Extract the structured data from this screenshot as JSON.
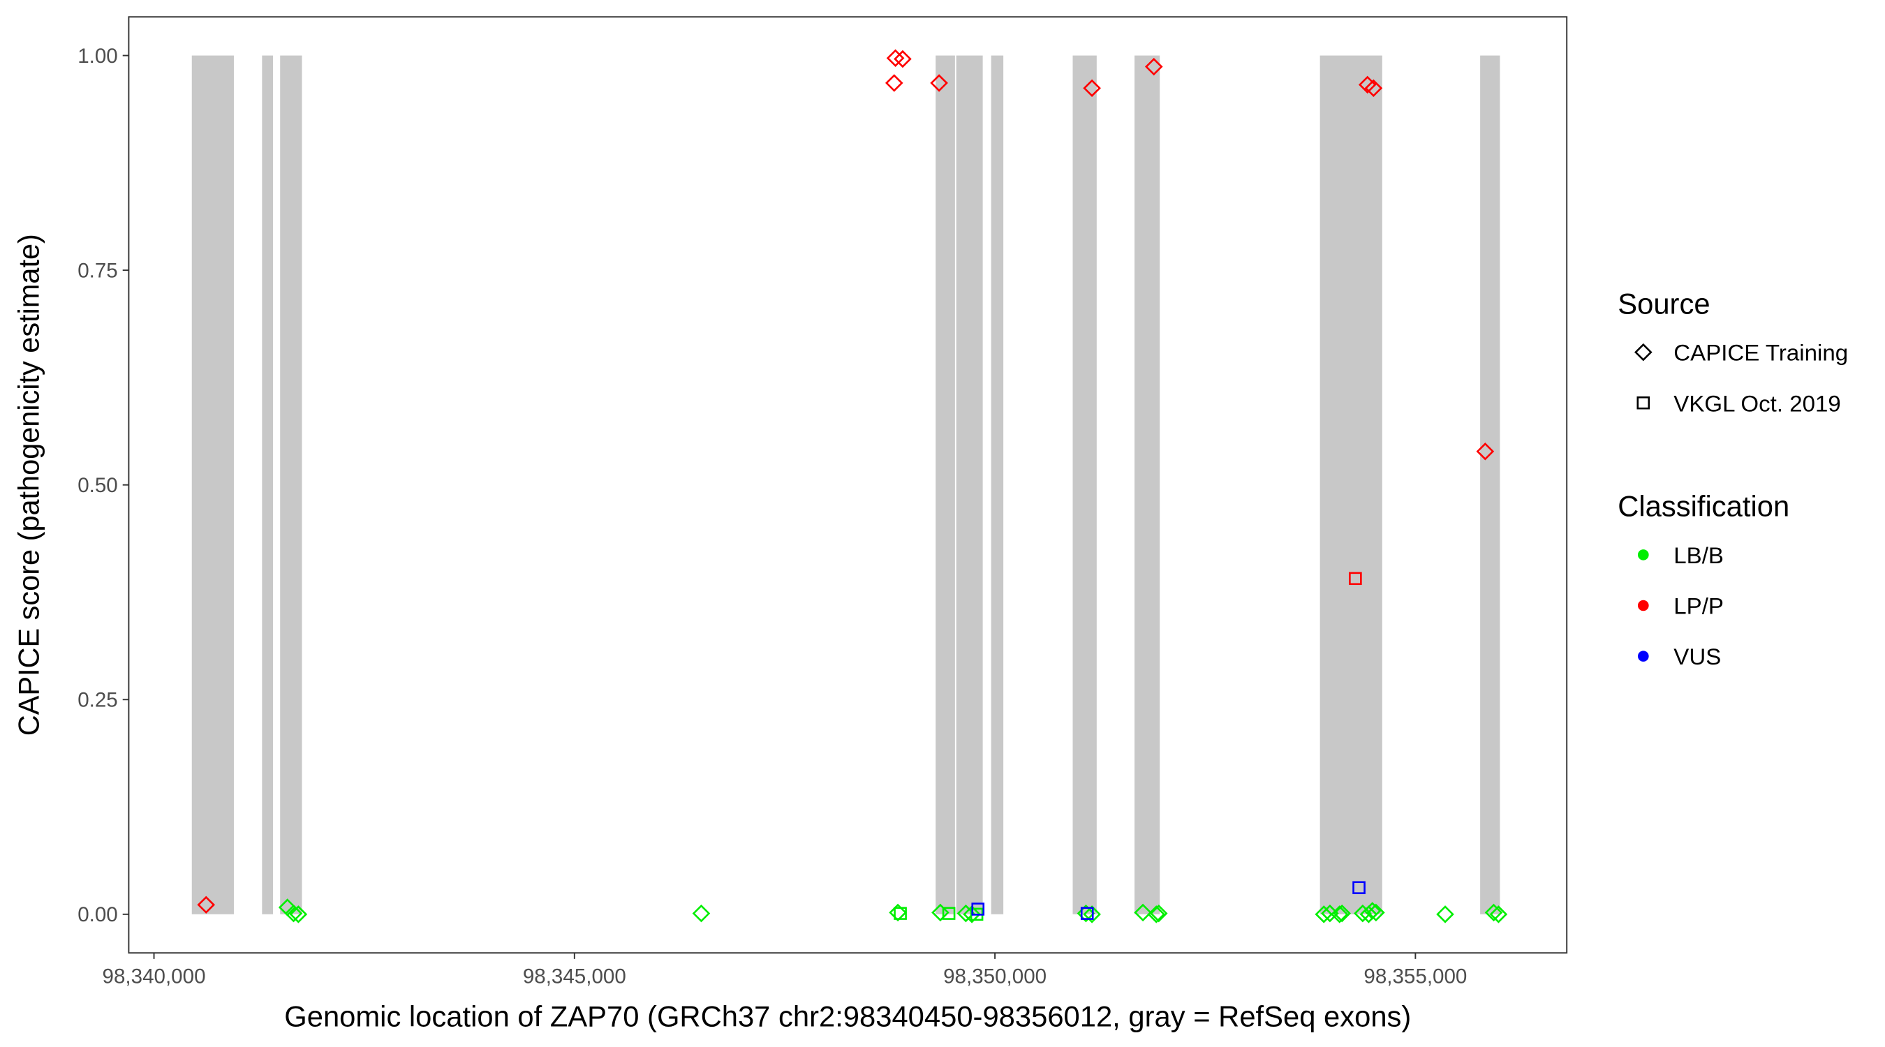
{
  "chart_data": {
    "type": "scatter",
    "title": "",
    "xlabel": "Genomic location of ZAP70 (GRCh37 chr2:98340450-98356012, gray = RefSeq exons)",
    "ylabel": "CAPICE score (pathogenicity estimate)",
    "xlim": [
      98339700,
      98356800
    ],
    "ylim": [
      -0.045,
      1.045
    ],
    "x_ticks": [
      98340000,
      98345000,
      98350000,
      98355000
    ],
    "x_tick_labels": [
      "98,340,000",
      "98,345,000",
      "98,350,000",
      "98,355,000"
    ],
    "y_ticks": [
      0,
      0.25,
      0.5,
      0.75,
      1.0
    ],
    "y_tick_labels": [
      "0.00",
      "0.25",
      "0.50",
      "0.75",
      "1.00"
    ],
    "grid": false,
    "exon_color": "#C8C8C8",
    "exons": [
      [
        98340450,
        98340950
      ],
      [
        98341285,
        98341415
      ],
      [
        98341500,
        98341760
      ],
      [
        98349295,
        98349525
      ],
      [
        98349540,
        98349855
      ],
      [
        98349955,
        98350100
      ],
      [
        98350925,
        98351210
      ],
      [
        98351660,
        98351960
      ],
      [
        98353865,
        98354605
      ],
      [
        98355770,
        98356005
      ]
    ],
    "legend_placement": "right",
    "legends": [
      {
        "title": "Source",
        "entries": [
          {
            "label": "CAPICE Training",
            "shape": "diamond"
          },
          {
            "label": "VKGL Oct. 2019",
            "shape": "square"
          }
        ]
      },
      {
        "title": "Classification",
        "entries": [
          {
            "label": "LB/B",
            "color": "#00EE00"
          },
          {
            "label": "LP/P",
            "color": "#FF0000"
          },
          {
            "label": "VUS",
            "color": "#0000FF"
          }
        ]
      }
    ],
    "colors": {
      "LB/B": "#00EE00",
      "LP/P": "#FF0000",
      "VUS": "#0000FF"
    },
    "points": [
      {
        "x": 98340620,
        "y": 0.011,
        "source": "CAPICE Training",
        "class": "LP/P"
      },
      {
        "x": 98348802,
        "y": 0.968,
        "source": "CAPICE Training",
        "class": "LP/P"
      },
      {
        "x": 98348817,
        "y": 0.997,
        "source": "CAPICE Training",
        "class": "LP/P"
      },
      {
        "x": 98348903,
        "y": 0.996,
        "source": "CAPICE Training",
        "class": "LP/P"
      },
      {
        "x": 98349336,
        "y": 0.968,
        "source": "CAPICE Training",
        "class": "LP/P"
      },
      {
        "x": 98351154,
        "y": 0.962,
        "source": "CAPICE Training",
        "class": "LP/P"
      },
      {
        "x": 98351890,
        "y": 0.987,
        "source": "CAPICE Training",
        "class": "LP/P"
      },
      {
        "x": 98354430,
        "y": 0.966,
        "source": "CAPICE Training",
        "class": "LP/P"
      },
      {
        "x": 98354502,
        "y": 0.962,
        "source": "CAPICE Training",
        "class": "LP/P"
      },
      {
        "x": 98355830,
        "y": 0.539,
        "source": "CAPICE Training",
        "class": "LP/P"
      },
      {
        "x": 98354286,
        "y": 0.391,
        "source": "VKGL Oct. 2019",
        "class": "LP/P"
      },
      {
        "x": 98341587,
        "y": 0.008,
        "source": "CAPICE Training",
        "class": "LB/B"
      },
      {
        "x": 98341660,
        "y": 0.001,
        "source": "CAPICE Training",
        "class": "LB/B"
      },
      {
        "x": 98341717,
        "y": 0.0,
        "source": "CAPICE Training",
        "class": "LB/B"
      },
      {
        "x": 98346508,
        "y": 0.001,
        "source": "CAPICE Training",
        "class": "LB/B"
      },
      {
        "x": 98348846,
        "y": 0.002,
        "source": "CAPICE Training",
        "class": "LB/B"
      },
      {
        "x": 98348875,
        "y": 0.001,
        "source": "VKGL Oct. 2019",
        "class": "LB/B"
      },
      {
        "x": 98349351,
        "y": 0.002,
        "source": "CAPICE Training",
        "class": "LB/B"
      },
      {
        "x": 98349452,
        "y": 0.001,
        "source": "VKGL Oct. 2019",
        "class": "LB/B"
      },
      {
        "x": 98349654,
        "y": 0.001,
        "source": "CAPICE Training",
        "class": "LB/B"
      },
      {
        "x": 98349726,
        "y": 0.0,
        "source": "CAPICE Training",
        "class": "LB/B"
      },
      {
        "x": 98349784,
        "y": 0.0,
        "source": "VKGL Oct. 2019",
        "class": "LB/B"
      },
      {
        "x": 98351082,
        "y": 0.001,
        "source": "CAPICE Training",
        "class": "LB/B"
      },
      {
        "x": 98351154,
        "y": 0.0,
        "source": "CAPICE Training",
        "class": "LB/B"
      },
      {
        "x": 98351760,
        "y": 0.002,
        "source": "CAPICE Training",
        "class": "LB/B"
      },
      {
        "x": 98351919,
        "y": 0.0,
        "source": "CAPICE Training",
        "class": "LB/B"
      },
      {
        "x": 98351948,
        "y": 0.001,
        "source": "CAPICE Training",
        "class": "LB/B"
      },
      {
        "x": 98353911,
        "y": 0.0,
        "source": "CAPICE Training",
        "class": "LB/B"
      },
      {
        "x": 98353983,
        "y": 0.001,
        "source": "CAPICE Training",
        "class": "LB/B"
      },
      {
        "x": 98354098,
        "y": 0.0,
        "source": "CAPICE Training",
        "class": "LB/B"
      },
      {
        "x": 98354127,
        "y": 0.001,
        "source": "CAPICE Training",
        "class": "LB/B"
      },
      {
        "x": 98354373,
        "y": 0.001,
        "source": "CAPICE Training",
        "class": "LB/B"
      },
      {
        "x": 98354444,
        "y": 0.0,
        "source": "CAPICE Training",
        "class": "LB/B"
      },
      {
        "x": 98354488,
        "y": 0.004,
        "source": "CAPICE Training",
        "class": "LB/B"
      },
      {
        "x": 98354531,
        "y": 0.002,
        "source": "CAPICE Training",
        "class": "LB/B"
      },
      {
        "x": 98355354,
        "y": 0.0,
        "source": "CAPICE Training",
        "class": "LB/B"
      },
      {
        "x": 98355931,
        "y": 0.002,
        "source": "CAPICE Training",
        "class": "LB/B"
      },
      {
        "x": 98355988,
        "y": 0.0,
        "source": "CAPICE Training",
        "class": "LB/B"
      },
      {
        "x": 98349798,
        "y": 0.006,
        "source": "VKGL Oct. 2019",
        "class": "VUS"
      },
      {
        "x": 98351097,
        "y": 0.001,
        "source": "VKGL Oct. 2019",
        "class": "VUS"
      },
      {
        "x": 98354329,
        "y": 0.031,
        "source": "VKGL Oct. 2019",
        "class": "VUS"
      }
    ]
  }
}
